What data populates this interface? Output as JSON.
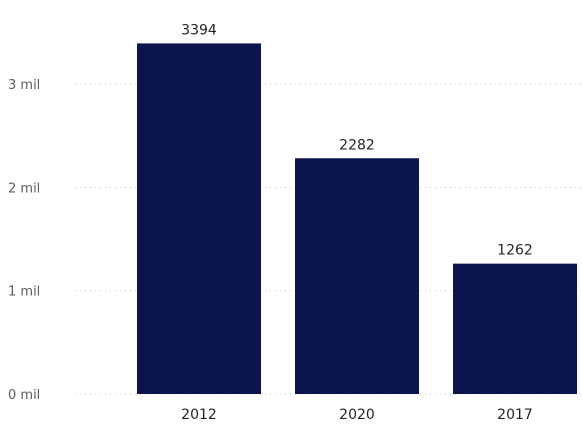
{
  "chart_data": {
    "type": "bar",
    "categories": [
      "2012",
      "2020",
      "2017"
    ],
    "values": [
      3394,
      2282,
      1262
    ],
    "data_labels": [
      "3394",
      "2282",
      "1262"
    ],
    "title": "",
    "xlabel": "",
    "ylabel": "",
    "ylim": [
      0,
      3700
    ],
    "yticks": [
      {
        "value": 0,
        "label": "0 mil"
      },
      {
        "value": 1000,
        "label": "1 mil"
      },
      {
        "value": 2000,
        "label": "2 mil"
      },
      {
        "value": 3000,
        "label": "3 mil"
      }
    ],
    "grid": true,
    "bar_color": "#0c1450"
  }
}
